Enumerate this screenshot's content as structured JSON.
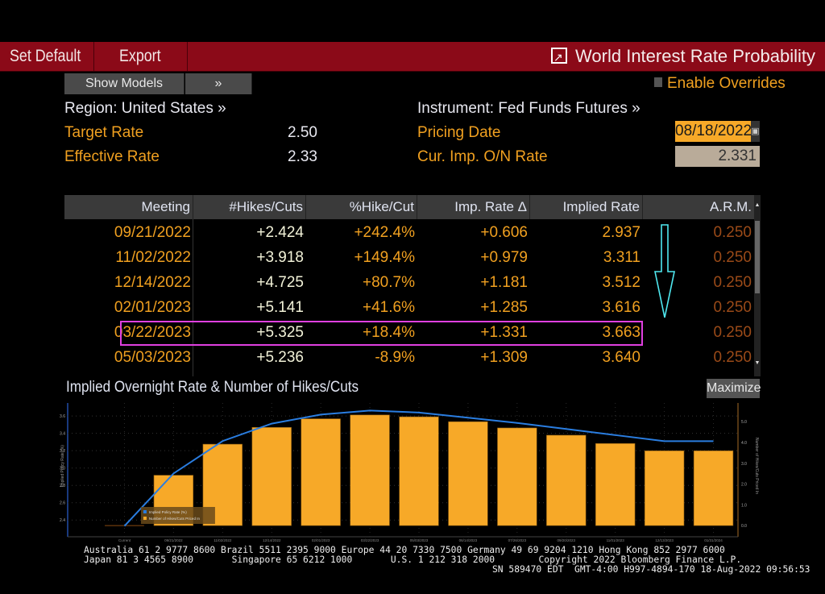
{
  "toolbar": {
    "set_default": "Set Default",
    "export": "Export",
    "title": "World Interest Rate Probability"
  },
  "controls": {
    "show_models": "Show Models",
    "expand": "»",
    "enable_overrides": "Enable Overrides",
    "enable_overrides_checked": false
  },
  "summary": {
    "region_label": "Region: United States »",
    "target_rate_label": "Target Rate",
    "target_rate": "2.50",
    "effective_rate_label": "Effective Rate",
    "effective_rate": "2.33",
    "instrument_label": "Instrument: Fed Funds Futures »",
    "pricing_date_label": "Pricing Date",
    "pricing_date": "08/18/2022",
    "cur_imp_label": "Cur. Imp. O/N Rate",
    "cur_imp_rate": "2.331"
  },
  "table": {
    "columns": [
      "Meeting",
      "#Hikes/Cuts",
      "%Hike/Cut",
      "Imp. Rate Δ",
      "Implied Rate",
      "A.R.M."
    ],
    "rows": [
      [
        "09/21/2022",
        "+2.424",
        "+242.4%",
        "+0.606",
        "2.937",
        "0.250"
      ],
      [
        "11/02/2022",
        "+3.918",
        "+149.4%",
        "+0.979",
        "3.311",
        "0.250"
      ],
      [
        "12/14/2022",
        "+4.725",
        "+80.7%",
        "+1.181",
        "3.512",
        "0.250"
      ],
      [
        "02/01/2023",
        "+5.141",
        "+41.6%",
        "+1.285",
        "3.616",
        "0.250"
      ],
      [
        "03/22/2023",
        "+5.325",
        "+18.4%",
        "+1.331",
        "3.663",
        "0.250"
      ],
      [
        "05/03/2023",
        "+5.236",
        "-8.9%",
        "+1.309",
        "3.640",
        "0.250"
      ]
    ],
    "highlighted_row": 4,
    "annotation_color": "#e040e0",
    "arrow_color": "#4fe8f0"
  },
  "chart_panel": {
    "title": "Implied Overnight Rate & Number of Hikes/Cuts",
    "maximize": "Maximize"
  },
  "chart_data": {
    "type": "bar",
    "title": "Implied Overnight Rate & Number of Hikes/Cuts",
    "categories": [
      "Current",
      "09/21/2022",
      "11/02/2022",
      "12/14/2022",
      "02/01/2023",
      "03/22/2023",
      "05/03/2023",
      "06/14/2023",
      "07/26/2023",
      "09/20/2023",
      "11/01/2023",
      "12/13/2023",
      "01/31/2024"
    ],
    "series": [
      {
        "name": "Number of Hikes/Cuts Priced In",
        "type": "bar",
        "axis": "right",
        "color": "#f7a928",
        "values": [
          0,
          2.424,
          3.918,
          4.725,
          5.141,
          5.325,
          5.236,
          5.0,
          4.7,
          4.35,
          3.95,
          3.6,
          3.6
        ]
      },
      {
        "name": "Implied Policy Rate (%)",
        "type": "line",
        "axis": "left",
        "color": "#2a7de0",
        "values": [
          2.331,
          2.937,
          3.311,
          3.512,
          3.616,
          3.663,
          3.64,
          3.58,
          3.52,
          3.45,
          3.38,
          3.31,
          3.31
        ]
      }
    ],
    "ylabel": "Implied Policy Rate (%)",
    "ylabel_right": "Number of Hikes/Cuts Priced In",
    "ylim": [
      2.3,
      3.75
    ],
    "ylim_right": [
      -0.15,
      5.9
    ],
    "yticks": [
      "2.4",
      "2.6",
      "2.8",
      "3.0",
      "3.2",
      "3.4",
      "3.6"
    ],
    "yticks_right": [
      "0.0",
      "1.0",
      "2.0",
      "3.0",
      "4.0",
      "5.0"
    ],
    "grid": true,
    "legend": "bottom-left"
  },
  "footer": {
    "line1": "Australia 61 2 9777 8600 Brazil 5511 2395 9000 Europe 44 20 7330 7500 Germany 49 69 9204 1210 Hong Kong 852 2977 6000",
    "line2": "Japan 81 3 4565 8900       Singapore 65 6212 1000       U.S. 1 212 318 2000        Copyright 2022 Bloomberg Finance L.P.",
    "line3": "SN 589470 EDT  GMT-4:00 H997-4894-170 18-Aug-2022 09:56:53"
  }
}
